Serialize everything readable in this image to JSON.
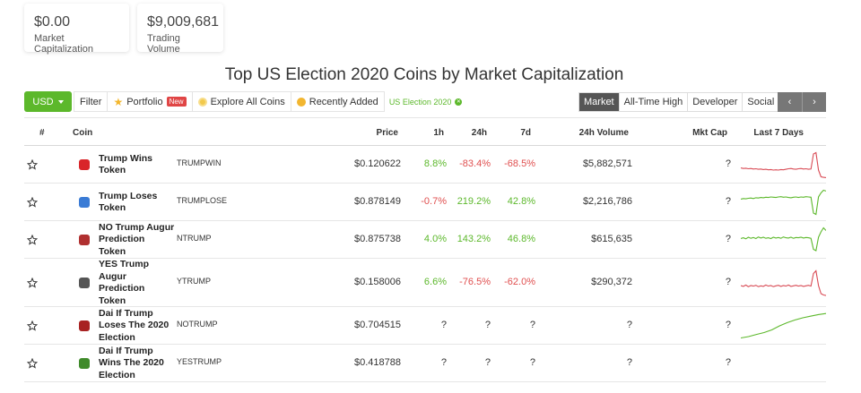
{
  "cards": {
    "market_cap": {
      "value": "$0.00",
      "label": "Market Capitalization"
    },
    "trading_volume": {
      "value": "$9,009,681",
      "label": "Trading Volume"
    }
  },
  "title": "Top US Election 2020 Coins by Market Capitalization",
  "toolbar": {
    "currency": "USD",
    "filter": "Filter",
    "portfolio": "Portfolio",
    "portfolio_badge": "New",
    "explore": "Explore All Coins",
    "recently_added": "Recently Added",
    "active_filter": "US Election 2020"
  },
  "tabs": [
    "Market",
    "All-Time High",
    "Developer",
    "Social"
  ],
  "pager": {
    "prev": "‹",
    "next": "›"
  },
  "columns": {
    "rank": "#",
    "coin": "Coin",
    "price": "Price",
    "h1": "1h",
    "h24": "24h",
    "d7": "7d",
    "volume": "24h Volume",
    "mcap": "Mkt Cap",
    "spark": "Last 7 Days"
  },
  "colors": {
    "accent": "#5cb82b",
    "negative": "#e04f4f",
    "dark_tab": "#555555"
  },
  "rows": [
    {
      "name": [
        "Trump Wins",
        "Token"
      ],
      "symbol": "TRUMPWIN",
      "price": "$0.120622",
      "h1": "8.8%",
      "h1_dir": "pos",
      "h24": "-83.4%",
      "h24_dir": "neg",
      "d7": "-68.5%",
      "d7_dir": "neg",
      "volume": "$5,882,571",
      "mcap": "?",
      "logo": "trump-wins-logo-icon",
      "logo_color": "#d9252a",
      "spark": {
        "color": "#d94b55",
        "values": [
          0.38,
          0.36,
          0.37,
          0.35,
          0.36,
          0.34,
          0.35,
          0.33,
          0.34,
          0.32,
          0.33,
          0.31,
          0.32,
          0.3,
          0.31,
          0.3,
          0.32,
          0.31,
          0.33,
          0.35,
          0.36,
          0.34,
          0.33,
          0.35,
          0.36,
          0.34,
          0.35,
          0.33,
          0.34,
          0.9,
          0.95,
          0.3,
          0.05,
          0.03,
          0.02
        ]
      }
    },
    {
      "name": [
        "Trump Loses",
        "Token"
      ],
      "symbol": "TRUMPLOSE",
      "price": "$0.878149",
      "h1": "-0.7%",
      "h1_dir": "neg",
      "h24": "219.2%",
      "h24_dir": "pos",
      "d7": "42.8%",
      "d7_dir": "pos",
      "volume": "$2,216,786",
      "mcap": "?",
      "logo": "trump-loses-logo-icon",
      "logo_color": "#3a7bd5",
      "spark": {
        "color": "#5cb82b",
        "values": [
          0.62,
          0.64,
          0.63,
          0.65,
          0.66,
          0.64,
          0.67,
          0.66,
          0.68,
          0.67,
          0.69,
          0.68,
          0.7,
          0.69,
          0.68,
          0.7,
          0.71,
          0.69,
          0.7,
          0.68,
          0.67,
          0.69,
          0.7,
          0.68,
          0.7,
          0.69,
          0.71,
          0.7,
          0.69,
          0.1,
          0.05,
          0.7,
          0.85,
          0.95,
          0.92
        ]
      }
    },
    {
      "name": [
        "NO Trump Augur",
        "Prediction",
        "Token"
      ],
      "symbol": "NTRUMP",
      "price": "$0.875738",
      "h1": "4.0%",
      "h1_dir": "pos",
      "h24": "143.2%",
      "h24_dir": "pos",
      "d7": "46.8%",
      "d7_dir": "pos",
      "volume": "$615,635",
      "mcap": "?",
      "logo": "augur-no-logo-icon",
      "logo_color": "#b03030",
      "spark": {
        "color": "#5cb82b",
        "values": [
          0.55,
          0.58,
          0.54,
          0.6,
          0.56,
          0.59,
          0.55,
          0.61,
          0.57,
          0.6,
          0.56,
          0.58,
          0.55,
          0.6,
          0.57,
          0.59,
          0.56,
          0.61,
          0.58,
          0.57,
          0.6,
          0.56,
          0.59,
          0.58,
          0.6,
          0.57,
          0.59,
          0.58,
          0.56,
          0.15,
          0.1,
          0.6,
          0.8,
          0.95,
          0.85
        ]
      }
    },
    {
      "name": [
        "YES Trump",
        "Augur",
        "Prediction",
        "Token"
      ],
      "symbol": "YTRUMP",
      "price": "$0.158006",
      "h1": "6.6%",
      "h1_dir": "pos",
      "h24": "-76.5%",
      "h24_dir": "neg",
      "d7": "-62.0%",
      "d7_dir": "neg",
      "volume": "$290,372",
      "mcap": "?",
      "logo": "augur-yes-logo-icon",
      "logo_color": "#555555",
      "spark": {
        "color": "#d94b55",
        "values": [
          0.4,
          0.37,
          0.42,
          0.36,
          0.4,
          0.38,
          0.41,
          0.36,
          0.39,
          0.37,
          0.42,
          0.38,
          0.4,
          0.36,
          0.39,
          0.41,
          0.37,
          0.4,
          0.38,
          0.42,
          0.37,
          0.39,
          0.41,
          0.38,
          0.4,
          0.37,
          0.39,
          0.41,
          0.38,
          0.85,
          0.95,
          0.4,
          0.1,
          0.05,
          0.03
        ]
      }
    },
    {
      "name": [
        "Dai If Trump",
        "Loses The 2020",
        "Election"
      ],
      "symbol": "NOTRUMP",
      "price": "$0.704515",
      "h1": "?",
      "h1_dir": "neu",
      "h24": "?",
      "h24_dir": "neu",
      "d7": "?",
      "d7_dir": "neu",
      "volume": "?",
      "mcap": "?",
      "logo": "dai-loses-logo-icon",
      "logo_color": "#a82222",
      "spark": {
        "color": "#5cb82b",
        "values": [
          0.05,
          0.1,
          0.18,
          0.25,
          0.35,
          0.5,
          0.62,
          0.72,
          0.8,
          0.86,
          0.92,
          0.96
        ]
      }
    },
    {
      "name": [
        "Dai If Trump",
        "Wins The 2020",
        "Election"
      ],
      "symbol": "YESTRUMP",
      "price": "$0.418788",
      "h1": "?",
      "h1_dir": "neu",
      "h24": "?",
      "h24_dir": "neu",
      "d7": "?",
      "d7_dir": "neu",
      "volume": "?",
      "mcap": "?",
      "logo": "dai-wins-logo-icon",
      "logo_color": "#3f8a2a",
      "spark": null
    }
  ]
}
